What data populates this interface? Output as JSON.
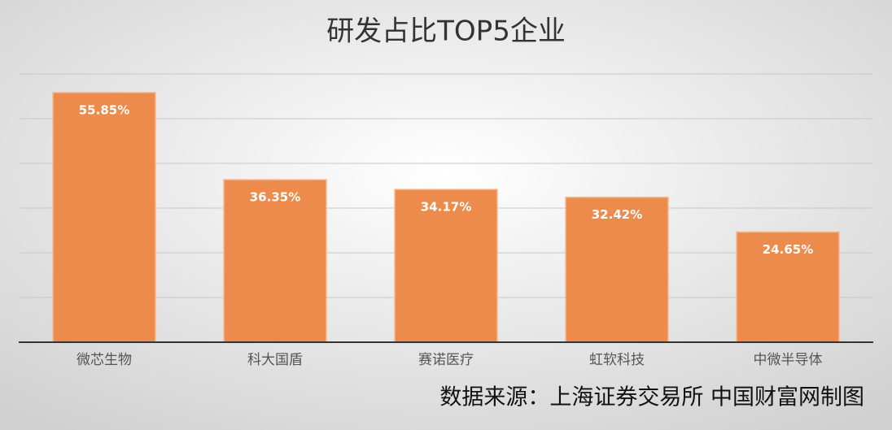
{
  "chart_data": {
    "type": "bar",
    "title": "研发占比TOP5企业",
    "categories": [
      "微芯生物",
      "科大国盾",
      "赛诺医疗",
      "虹软科技",
      "中微半导体"
    ],
    "values": [
      55.85,
      36.35,
      34.17,
      32.42,
      24.65
    ],
    "value_labels": [
      "55.85%",
      "36.35%",
      "34.17%",
      "32.42%",
      "24.65%"
    ],
    "color": "#ed8b4c",
    "ylim": [
      0,
      60
    ],
    "yticks": [
      0,
      10,
      20,
      30,
      40,
      50,
      60
    ],
    "grid": true,
    "source": "数据来源：上海证券交易所 中国财富网制图"
  }
}
